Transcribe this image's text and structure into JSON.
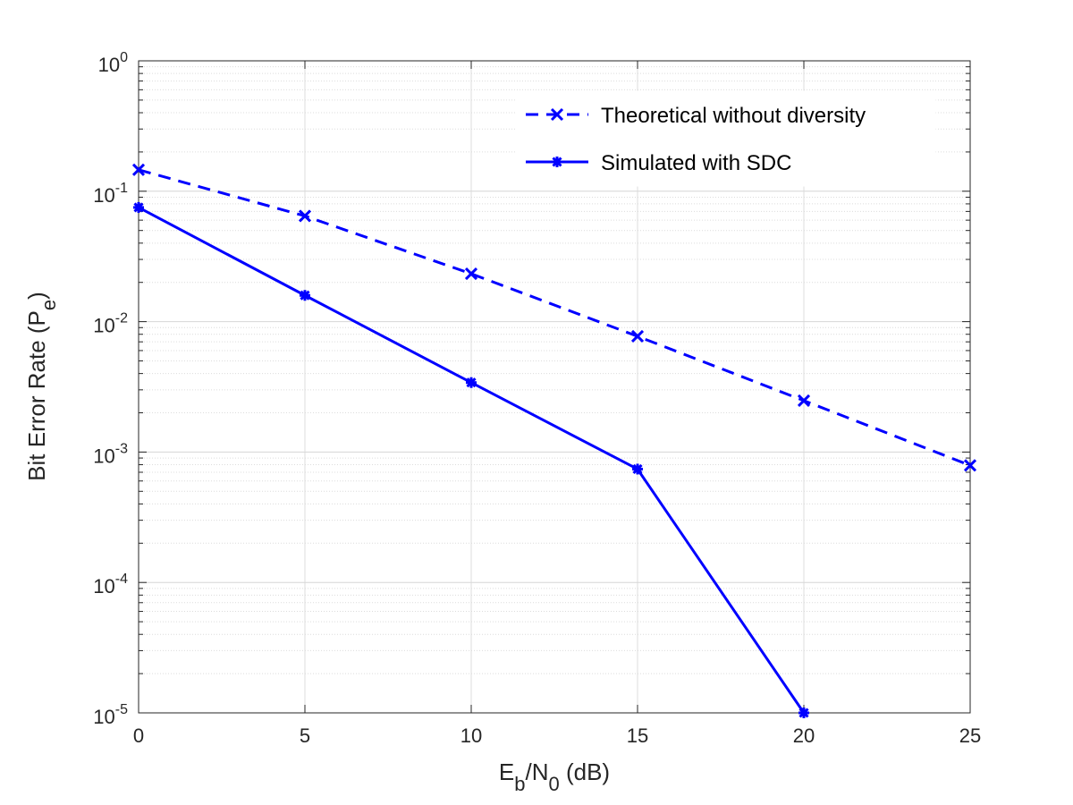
{
  "chart_data": {
    "type": "line",
    "x_scale": "linear",
    "y_scale": "log",
    "xlim": [
      0,
      25
    ],
    "ylim": [
      1e-05,
      1
    ],
    "x_ticks": [
      "0",
      "5",
      "10",
      "15",
      "20",
      "25"
    ],
    "y_tick_exponents": [
      "0",
      "-1",
      "-2",
      "-3",
      "-4",
      "-5"
    ],
    "y_tick_base": "10",
    "grid": true,
    "minor_grid": true,
    "legend_position": "top-right",
    "xlabel": {
      "E": "E",
      "b": "b",
      "slash_N": "/N",
      "zero": "0",
      "unit": " (dB)"
    },
    "ylabel": {
      "main": "Bit Error Rate (P",
      "sub": "e",
      "close": ")"
    },
    "series": [
      {
        "name": "Theoretical without diversity",
        "style": "dashed",
        "marker": "x",
        "color": "#0000ff",
        "x": [
          0,
          5,
          10,
          15,
          20,
          25
        ],
        "y": [
          0.146,
          0.0646,
          0.0233,
          0.00772,
          0.00248,
          0.00079
        ]
      },
      {
        "name": "Simulated with SDC",
        "style": "solid",
        "marker": "asterisk",
        "color": "#0000ff",
        "x": [
          0,
          5,
          10,
          15,
          20
        ],
        "y": [
          0.0751,
          0.0159,
          0.00341,
          0.00074,
          1e-05
        ]
      }
    ]
  }
}
